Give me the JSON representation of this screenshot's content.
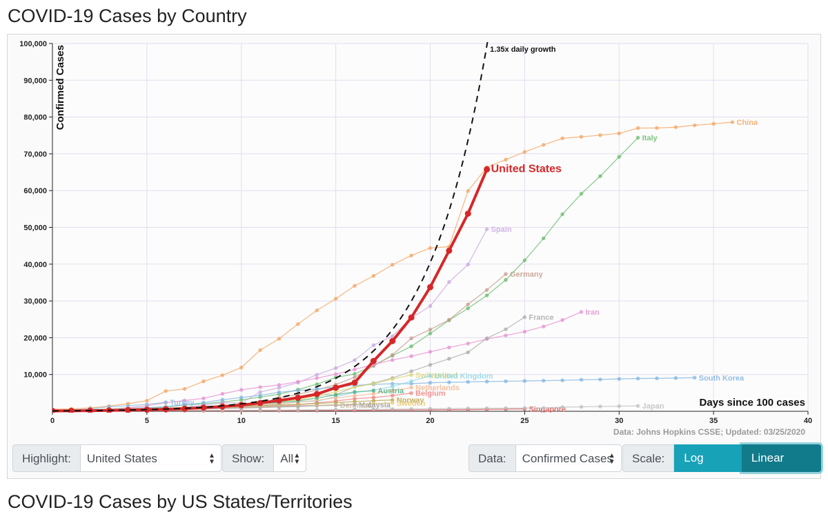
{
  "page": {
    "title": "COVID-19 Cases by Country",
    "second_title": "COVID-19 Cases by US States/Territories"
  },
  "controls": {
    "highlight_label": "Highlight:",
    "highlight_value": "United States",
    "show_label": "Show:",
    "show_value": "All",
    "data_label": "Data:",
    "data_value": "Confirmed Cases",
    "scale_label": "Scale:",
    "log_scale": "Log Scale",
    "linear_scale": "Linear Scale"
  },
  "colors": {
    "highlight": "#d62728",
    "grid": "#e4dcef",
    "button_teal": "#17a2b8",
    "button_teal_active": "#117a8b"
  },
  "chart_data": {
    "type": "line",
    "ylabel": "Confirmed Cases",
    "xlabel": "Days since 100 cases",
    "source_note": "Data: Johns Hopkins CSSE; Updated: 03/25/2020",
    "xlim": [
      0,
      40
    ],
    "ylim": [
      0,
      100000
    ],
    "x_ticks": [
      0,
      5,
      10,
      15,
      20,
      25,
      30,
      35,
      40
    ],
    "y_ticks": [
      10000,
      20000,
      30000,
      40000,
      50000,
      60000,
      70000,
      80000,
      90000,
      100000
    ],
    "y_tick_labels": [
      "10,000",
      "20,000",
      "30,000",
      "40,000",
      "50,000",
      "60,000",
      "70,000",
      "80,000",
      "90,000",
      "100,000"
    ],
    "scale": "linear",
    "growth_line": {
      "label": "1.35x daily growth",
      "rate": 1.35,
      "start": 100
    },
    "series": [
      {
        "name": "United States",
        "highlight": true,
        "color": "#d62728",
        "values": [
          100,
          124,
          158,
          221,
          319,
          435,
          541,
          704,
          994,
          1301,
          1697,
          2247,
          2943,
          3680,
          4663,
          6411,
          7786,
          13680,
          19101,
          25493,
          33746,
          43667,
          53740,
          65778
        ]
      },
      {
        "name": "China",
        "color": "#f4a460",
        "values": [
          548,
          643,
          920,
          1406,
          2075,
          2877,
          5509,
          6087,
          8141,
          9802,
          11891,
          16630,
          19716,
          23707,
          27440,
          30587,
          34110,
          36814,
          39829,
          42354,
          44386,
          44759,
          59895,
          66358,
          68413,
          70513,
          72434,
          74211,
          74619,
          75077,
          75550,
          77001,
          77022,
          77241,
          77754,
          78166,
          78600
        ]
      },
      {
        "name": "Italy",
        "color": "#66bb6a",
        "values": [
          155,
          229,
          322,
          453,
          655,
          888,
          1128,
          1694,
          2036,
          2502,
          3089,
          3858,
          4636,
          5883,
          7375,
          9172,
          10149,
          12462,
          15113,
          17660,
          21157,
          24747,
          27980,
          31506,
          35713,
          41035,
          47021,
          53578,
          59138,
          63927,
          69176,
          74386
        ]
      },
      {
        "name": "Spain",
        "color": "#c9a7e0",
        "values": [
          120,
          165,
          222,
          259,
          400,
          500,
          673,
          1073,
          1695,
          2277,
          2277,
          5232,
          6391,
          7798,
          9942,
          11748,
          13910,
          17963,
          20410,
          25374,
          28603,
          35136,
          39885,
          49515
        ]
      },
      {
        "name": "Germany",
        "color": "#c49a8a",
        "values": [
          130,
          159,
          196,
          262,
          482,
          670,
          799,
          1040,
          1176,
          1457,
          1908,
          2078,
          3675,
          4585,
          5795,
          7272,
          9257,
          12327,
          15320,
          19848,
          22213,
          24873,
          29056,
          32986,
          37323
        ]
      },
      {
        "name": "Iran",
        "color": "#e58fd0",
        "values": [
          139,
          245,
          388,
          593,
          978,
          1501,
          2336,
          2922,
          3513,
          4747,
          5823,
          6566,
          7161,
          8042,
          9000,
          10075,
          11364,
          12729,
          13938,
          14991,
          16169,
          17361,
          18407,
          19644,
          20610,
          21638,
          23049,
          24811,
          27017
        ]
      },
      {
        "name": "France",
        "color": "#a9a9a9",
        "values": [
          100,
          130,
          191,
          204,
          285,
          377,
          653,
          949,
          1126,
          1209,
          1784,
          2281,
          2281,
          3661,
          4469,
          4499,
          6633,
          7652,
          9043,
          10871,
          12612,
          14282,
          16018,
          19856,
          22304,
          25600
        ]
      },
      {
        "name": "South Korea",
        "color": "#7fb3e0",
        "values": [
          104,
          204,
          433,
          602,
          833,
          977,
          1261,
          1766,
          2337,
          3150,
          3736,
          4335,
          5186,
          5621,
          6088,
          6593,
          7041,
          7314,
          7478,
          7513,
          7755,
          7869,
          7979,
          8086,
          8162,
          8236,
          8320,
          8413,
          8565,
          8652,
          8799,
          8897,
          8961,
          9037,
          9137
        ]
      },
      {
        "name": "Switzerland",
        "color": "#d8d86a",
        "values": [
          114,
          214,
          268,
          337,
          374,
          491,
          652,
          652,
          1139,
          1359,
          2200,
          2200,
          2700,
          3028,
          4075,
          5294,
          6575,
          7474,
          8795,
          9877
        ]
      },
      {
        "name": "United Kingdom",
        "color": "#8ed6e8",
        "values": [
          116,
          164,
          207,
          274,
          322,
          384,
          459,
          459,
          802,
          1144,
          1145,
          1551,
          1960,
          2642,
          2716,
          4014,
          5067,
          5745,
          6726,
          8164,
          9640
        ]
      },
      {
        "name": "Netherlands",
        "color": "#f7b58d",
        "values": [
          128,
          188,
          265,
          321,
          382,
          503,
          503,
          806,
          962,
          1138,
          1416,
          1711,
          2058,
          2467,
          3003,
          3640,
          4217,
          4764,
          5580,
          6438
        ]
      },
      {
        "name": "Austria",
        "color": "#4caf80",
        "values": [
          104,
          131,
          182,
          246,
          302,
          504,
          655,
          860,
          1018,
          1332,
          1646,
          2013,
          2388,
          2814,
          3582,
          4474,
          5283,
          5588
        ]
      },
      {
        "name": "Belgium",
        "color": "#f08080",
        "values": [
          109,
          169,
          200,
          239,
          267,
          314,
          314,
          559,
          689,
          886,
          1058,
          1243,
          1486,
          1795,
          2257,
          2815,
          3401,
          3743,
          4269,
          4937
        ]
      },
      {
        "name": "Norway",
        "color": "#b8a04a",
        "values": [
          113,
          169,
          192,
          277,
          489,
          621,
          762,
          1086,
          1106,
          1256,
          1423,
          1552,
          1741,
          1877,
          2118,
          2385,
          2621,
          2863,
          3084
        ]
      },
      {
        "name": "Sweden",
        "color": "#e8c86a",
        "values": [
          101,
          161,
          203,
          248,
          355,
          500,
          599,
          814,
          961,
          1022,
          1103,
          1190,
          1279,
          1439,
          1639,
          1763,
          1934,
          2046,
          2286
        ]
      },
      {
        "name": "Turkey",
        "color": "#8fb8d8",
        "values": [
          191,
          359,
          670,
          1236,
          1529,
          1872,
          2433
        ]
      },
      {
        "name": "Malaysia",
        "color": "#9a9a9a",
        "values": [
          117,
          129,
          149,
          149,
          197,
          238,
          428,
          566,
          673,
          790,
          900,
          1030,
          1183,
          1306,
          1518,
          1624,
          1796
        ]
      },
      {
        "name": "Denmark",
        "color": "#c7b7a3",
        "values": [
          156,
          264,
          444,
          617,
          804,
          836,
          875,
          933,
          1025,
          1116,
          1225,
          1337,
          1420,
          1514,
          1572,
          1718
        ]
      },
      {
        "name": "Singapore",
        "color": "#d9534f",
        "values": [
          102,
          106,
          108,
          110,
          110,
          117,
          130,
          138,
          150,
          150,
          160,
          178,
          178,
          200,
          212,
          226,
          243,
          266,
          313,
          345,
          385,
          432,
          455,
          509,
          558,
          631
        ]
      },
      {
        "name": "Japan",
        "color": "#bdbdbd",
        "values": [
          105,
          132,
          144,
          144,
          164,
          186,
          210,
          230,
          239,
          254,
          268,
          284,
          317,
          349,
          408,
          455,
          488,
          514,
          568,
          620,
          675,
          716,
          780,
          814,
          829,
          873,
          914,
          1139,
          1193,
          1307,
          1387,
          1468
        ]
      }
    ]
  }
}
